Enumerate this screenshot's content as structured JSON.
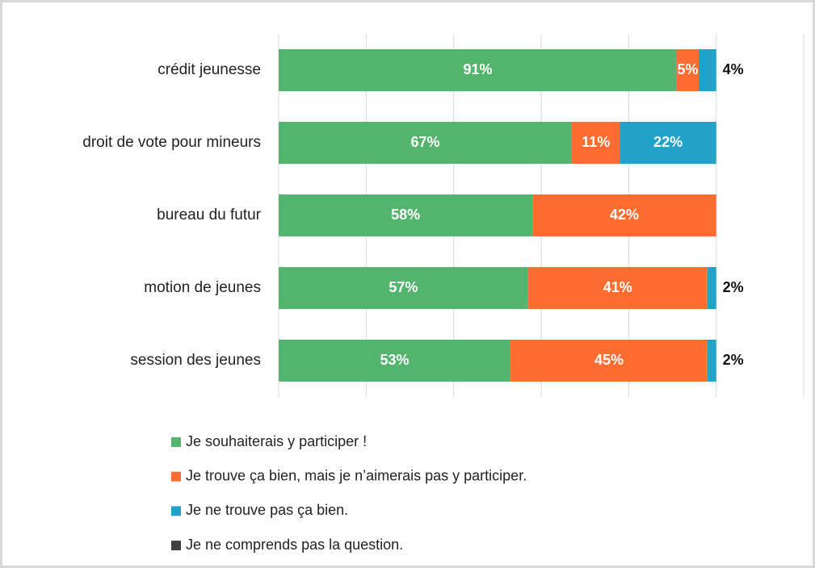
{
  "chart_data": {
    "type": "bar",
    "orientation": "horizontal",
    "stacked": true,
    "categories": [
      "crédit jeunesse",
      "droit de vote pour mineurs",
      "bureau du futur",
      "motion de jeunes",
      "session des jeunes"
    ],
    "series": [
      {
        "name": "Je souhaiterais y participer !",
        "color": "#53b46e",
        "values": [
          91,
          67,
          58,
          57,
          53
        ],
        "value_labels": [
          "91%",
          "67%",
          "58%",
          "57%",
          "53%"
        ]
      },
      {
        "name": "Je trouve ça bien, mais je n’aimerais pas y participer.",
        "color": "#fe6c2f",
        "values": [
          5,
          11,
          42,
          41,
          45
        ],
        "value_labels": [
          "5%",
          "11%",
          "42%",
          "41%",
          "45%"
        ]
      },
      {
        "name": "Je ne trouve pas ça bien.",
        "color": "#22a1c9",
        "values": [
          4,
          22,
          0,
          2,
          2
        ],
        "value_labels": [
          "4%",
          "22%",
          null,
          "2%",
          "2%"
        ]
      },
      {
        "name": "Je ne comprends pas la question.",
        "color": "#404040",
        "values": [
          0,
          0,
          0,
          0,
          0
        ],
        "value_labels": [
          null,
          null,
          null,
          null,
          null
        ]
      }
    ],
    "xlim": [
      0,
      120
    ],
    "xticks": [
      0,
      20,
      40,
      60,
      80,
      100,
      120
    ],
    "grid": true,
    "legend": "bottom"
  }
}
